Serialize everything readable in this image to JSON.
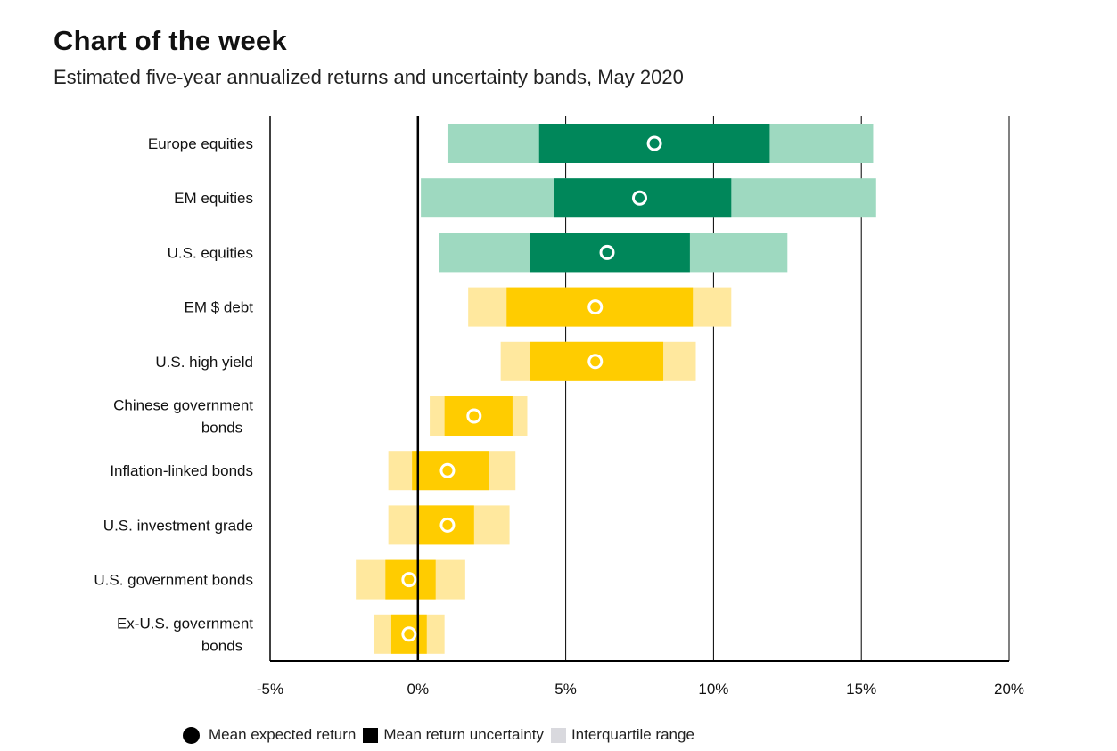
{
  "chart_data": {
    "type": "range-bar",
    "title": "Chart of the week",
    "subtitle": "Estimated five-year annualized returns and uncertainty bands, May 2020",
    "xlabel": "",
    "ylabel": "",
    "xlim": [
      -5,
      20
    ],
    "xticks": [
      -5,
      0,
      5,
      10,
      15,
      20
    ],
    "xtick_labels": [
      "-5%",
      "0%",
      "5%",
      "10%",
      "15%",
      "20%"
    ],
    "grid": "vertical",
    "categories": [
      "Europe equities",
      "EM equities",
      "U.S. equities",
      "EM $ debt",
      "U.S. high yield",
      "Chinese government bonds",
      "Inflation-linked bonds",
      "U.S. investment grade",
      "U.S. government bonds",
      "Ex-U.S. government bonds"
    ],
    "category_lines": [
      [
        "Europe equities"
      ],
      [
        "EM equities"
      ],
      [
        "U.S. equities"
      ],
      [
        "EM $ debt"
      ],
      [
        "U.S. high yield"
      ],
      [
        "Chinese government",
        "bonds"
      ],
      [
        "Inflation-linked bonds"
      ],
      [
        "U.S. investment grade"
      ],
      [
        "U.S. government bonds"
      ],
      [
        "Ex-U.S. government",
        "bonds"
      ]
    ],
    "asset_class": [
      "equity",
      "equity",
      "equity",
      "fixed_income",
      "fixed_income",
      "fixed_income",
      "fixed_income",
      "fixed_income",
      "fixed_income",
      "fixed_income"
    ],
    "mean_expected_return": [
      8.0,
      7.5,
      6.4,
      6.0,
      6.0,
      1.9,
      1.0,
      1.0,
      -0.3,
      -0.3
    ],
    "mean_return_uncertainty": [
      [
        4.1,
        11.9
      ],
      [
        4.6,
        10.6
      ],
      [
        3.8,
        9.2
      ],
      [
        3.0,
        9.3
      ],
      [
        3.8,
        8.3
      ],
      [
        0.9,
        3.2
      ],
      [
        -0.2,
        2.4
      ],
      [
        0.0,
        1.9
      ],
      [
        -1.1,
        0.6
      ],
      [
        -0.9,
        0.3
      ]
    ],
    "interquartile_range": [
      [
        1.0,
        15.4
      ],
      [
        0.1,
        15.5
      ],
      [
        0.7,
        12.5
      ],
      [
        1.7,
        10.6
      ],
      [
        2.8,
        9.4
      ],
      [
        0.4,
        3.7
      ],
      [
        -1.0,
        3.3
      ],
      [
        -1.0,
        3.1
      ],
      [
        -2.1,
        1.6
      ],
      [
        -1.5,
        0.9
      ]
    ],
    "colors": {
      "equity_dark": "#00875a",
      "equity_light": "#9ed9c0",
      "fixed_income_dark": "#ffcc00",
      "fixed_income_light": "#ffe89e",
      "marker": "#ffffff",
      "axis": "#000000"
    },
    "legend": [
      {
        "shape": "circle",
        "color": "#000000",
        "label": "Mean expected return"
      },
      {
        "shape": "square",
        "color": "#000000",
        "label": "Mean return uncertainty"
      },
      {
        "shape": "square",
        "color": "#d9d9de",
        "label": "Interquartile range"
      }
    ],
    "legend_position": "bottom-center"
  }
}
